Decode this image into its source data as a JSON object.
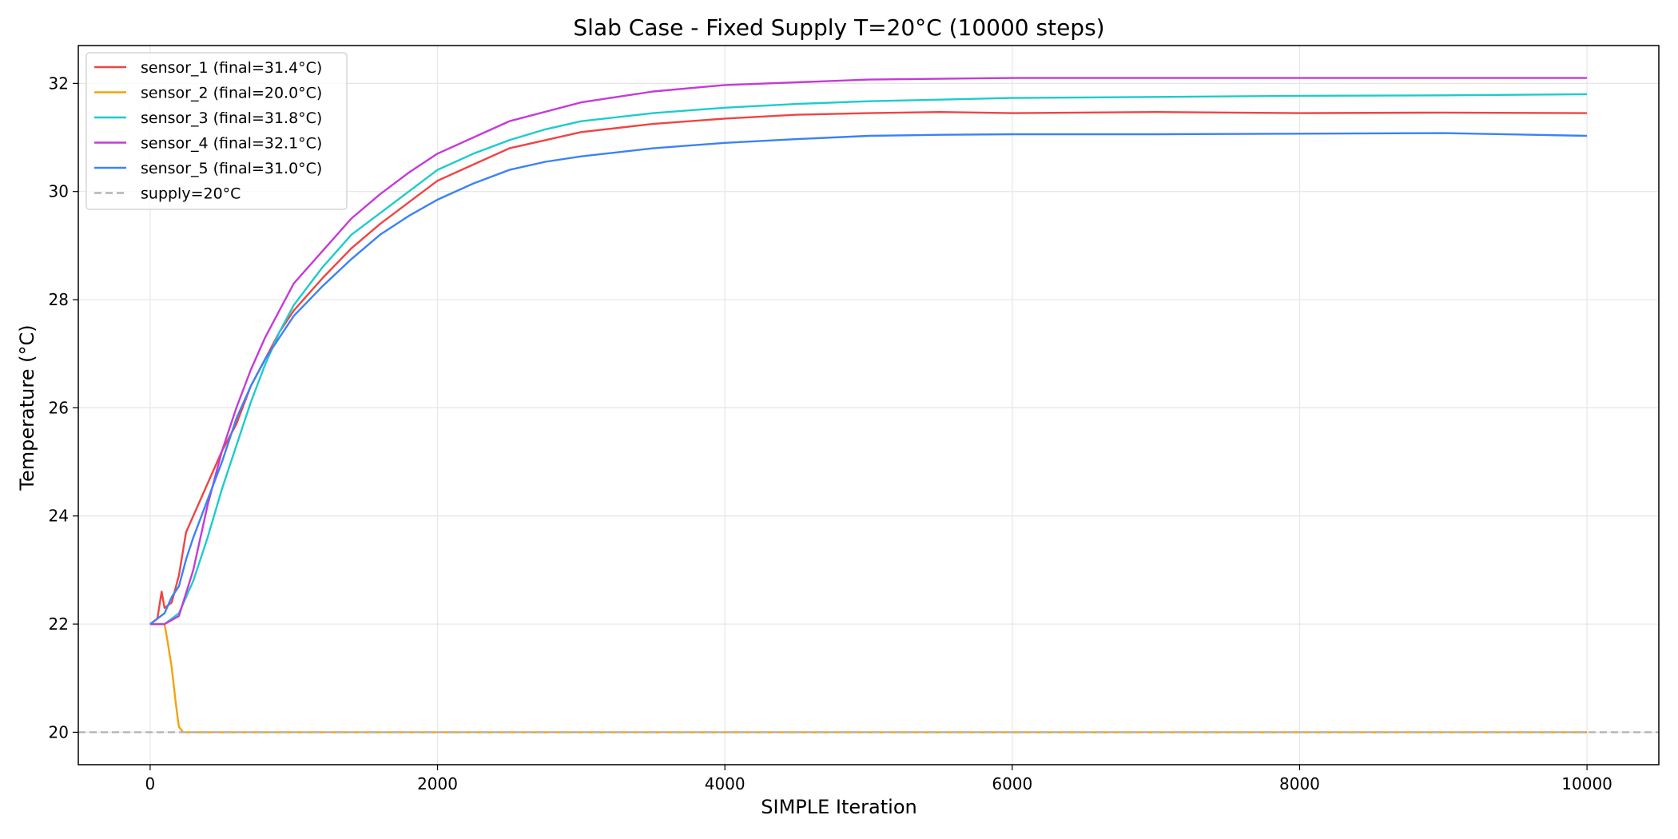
{
  "chart_data": {
    "type": "line",
    "title": "Slab Case - Fixed Supply T=20°C (10000 steps)",
    "xlabel": "SIMPLE Iteration",
    "ylabel": "Temperature (°C)",
    "xlim": [
      -500,
      10500
    ],
    "ylim": [
      19.4,
      32.7
    ],
    "xticks": [
      0,
      2000,
      4000,
      6000,
      8000,
      10000
    ],
    "yticks": [
      20,
      22,
      24,
      26,
      28,
      30,
      32
    ],
    "grid": true,
    "legend_position": "top-left",
    "series": [
      {
        "name": "sensor_1 (final=31.4°C)",
        "color": "#ef4444",
        "style": "solid",
        "points": [
          [
            0,
            22.0
          ],
          [
            50,
            22.1
          ],
          [
            80,
            22.6
          ],
          [
            100,
            22.3
          ],
          [
            150,
            22.4
          ],
          [
            200,
            22.9
          ],
          [
            250,
            23.7
          ],
          [
            300,
            24.0
          ],
          [
            400,
            24.6
          ],
          [
            500,
            25.2
          ],
          [
            600,
            25.7
          ],
          [
            700,
            26.4
          ],
          [
            800,
            26.9
          ],
          [
            900,
            27.4
          ],
          [
            1000,
            27.8
          ],
          [
            1200,
            28.4
          ],
          [
            1400,
            28.95
          ],
          [
            1600,
            29.4
          ],
          [
            1800,
            29.8
          ],
          [
            2000,
            30.2
          ],
          [
            2250,
            30.5
          ],
          [
            2500,
            30.8
          ],
          [
            2750,
            30.95
          ],
          [
            3000,
            31.1
          ],
          [
            3500,
            31.25
          ],
          [
            4000,
            31.35
          ],
          [
            4500,
            31.42
          ],
          [
            5000,
            31.45
          ],
          [
            5500,
            31.47
          ],
          [
            6000,
            31.45
          ],
          [
            7000,
            31.47
          ],
          [
            8000,
            31.45
          ],
          [
            9000,
            31.46
          ],
          [
            10000,
            31.45
          ]
        ]
      },
      {
        "name": "sensor_2 (final=20.0°C)",
        "color": "#f5a20a",
        "style": "solid",
        "points": [
          [
            0,
            22.0
          ],
          [
            100,
            22.0
          ],
          [
            120,
            21.7
          ],
          [
            150,
            21.2
          ],
          [
            180,
            20.5
          ],
          [
            200,
            20.1
          ],
          [
            230,
            20.0
          ],
          [
            10000,
            20.0
          ]
        ]
      },
      {
        "name": "sensor_3 (final=31.8°C)",
        "color": "#1ecbcb",
        "style": "solid",
        "points": [
          [
            0,
            22.0
          ],
          [
            100,
            22.0
          ],
          [
            200,
            22.2
          ],
          [
            300,
            22.8
          ],
          [
            400,
            23.6
          ],
          [
            500,
            24.5
          ],
          [
            600,
            25.3
          ],
          [
            700,
            26.1
          ],
          [
            800,
            26.8
          ],
          [
            900,
            27.4
          ],
          [
            1000,
            27.9
          ],
          [
            1200,
            28.6
          ],
          [
            1400,
            29.2
          ],
          [
            1600,
            29.6
          ],
          [
            1800,
            30.0
          ],
          [
            2000,
            30.4
          ],
          [
            2250,
            30.7
          ],
          [
            2500,
            30.95
          ],
          [
            2750,
            31.15
          ],
          [
            3000,
            31.3
          ],
          [
            3500,
            31.45
          ],
          [
            4000,
            31.55
          ],
          [
            4500,
            31.62
          ],
          [
            5000,
            31.67
          ],
          [
            5500,
            31.7
          ],
          [
            6000,
            31.73
          ],
          [
            7000,
            31.75
          ],
          [
            8000,
            31.77
          ],
          [
            9000,
            31.78
          ],
          [
            10000,
            31.8
          ]
        ]
      },
      {
        "name": "sensor_4 (final=32.1°C)",
        "color": "#c43bd6",
        "style": "solid",
        "points": [
          [
            0,
            22.0
          ],
          [
            100,
            22.0
          ],
          [
            200,
            22.15
          ],
          [
            300,
            23.0
          ],
          [
            400,
            24.2
          ],
          [
            500,
            25.2
          ],
          [
            600,
            26.0
          ],
          [
            700,
            26.7
          ],
          [
            800,
            27.3
          ],
          [
            900,
            27.8
          ],
          [
            1000,
            28.3
          ],
          [
            1200,
            28.9
          ],
          [
            1400,
            29.5
          ],
          [
            1600,
            29.95
          ],
          [
            1800,
            30.35
          ],
          [
            2000,
            30.7
          ],
          [
            2500,
            31.3
          ],
          [
            3000,
            31.65
          ],
          [
            3500,
            31.85
          ],
          [
            4000,
            31.97
          ],
          [
            5000,
            32.07
          ],
          [
            6000,
            32.1
          ],
          [
            7000,
            32.1
          ],
          [
            8000,
            32.1
          ],
          [
            9000,
            32.1
          ],
          [
            10000,
            32.1
          ]
        ]
      },
      {
        "name": "sensor_5 (final=31.0°C)",
        "color": "#3b82f6",
        "style": "solid",
        "points": [
          [
            0,
            22.0
          ],
          [
            100,
            22.2
          ],
          [
            150,
            22.5
          ],
          [
            200,
            22.7
          ],
          [
            250,
            23.2
          ],
          [
            300,
            23.6
          ],
          [
            400,
            24.3
          ],
          [
            500,
            25.0
          ],
          [
            600,
            25.8
          ],
          [
            700,
            26.4
          ],
          [
            800,
            26.9
          ],
          [
            900,
            27.3
          ],
          [
            1000,
            27.7
          ],
          [
            1200,
            28.25
          ],
          [
            1400,
            28.75
          ],
          [
            1600,
            29.2
          ],
          [
            1800,
            29.55
          ],
          [
            2000,
            29.85
          ],
          [
            2250,
            30.15
          ],
          [
            2500,
            30.4
          ],
          [
            2750,
            30.55
          ],
          [
            3000,
            30.65
          ],
          [
            3500,
            30.8
          ],
          [
            4000,
            30.9
          ],
          [
            4500,
            30.97
          ],
          [
            5000,
            31.03
          ],
          [
            5500,
            31.05
          ],
          [
            6000,
            31.06
          ],
          [
            7000,
            31.06
          ],
          [
            8000,
            31.07
          ],
          [
            9000,
            31.08
          ],
          [
            10000,
            31.03
          ]
        ]
      },
      {
        "name": "supply=20°C",
        "color": "#b3b3b3",
        "style": "dashed",
        "points": [
          [
            -500,
            20.0
          ],
          [
            10500,
            20.0
          ]
        ]
      }
    ]
  }
}
